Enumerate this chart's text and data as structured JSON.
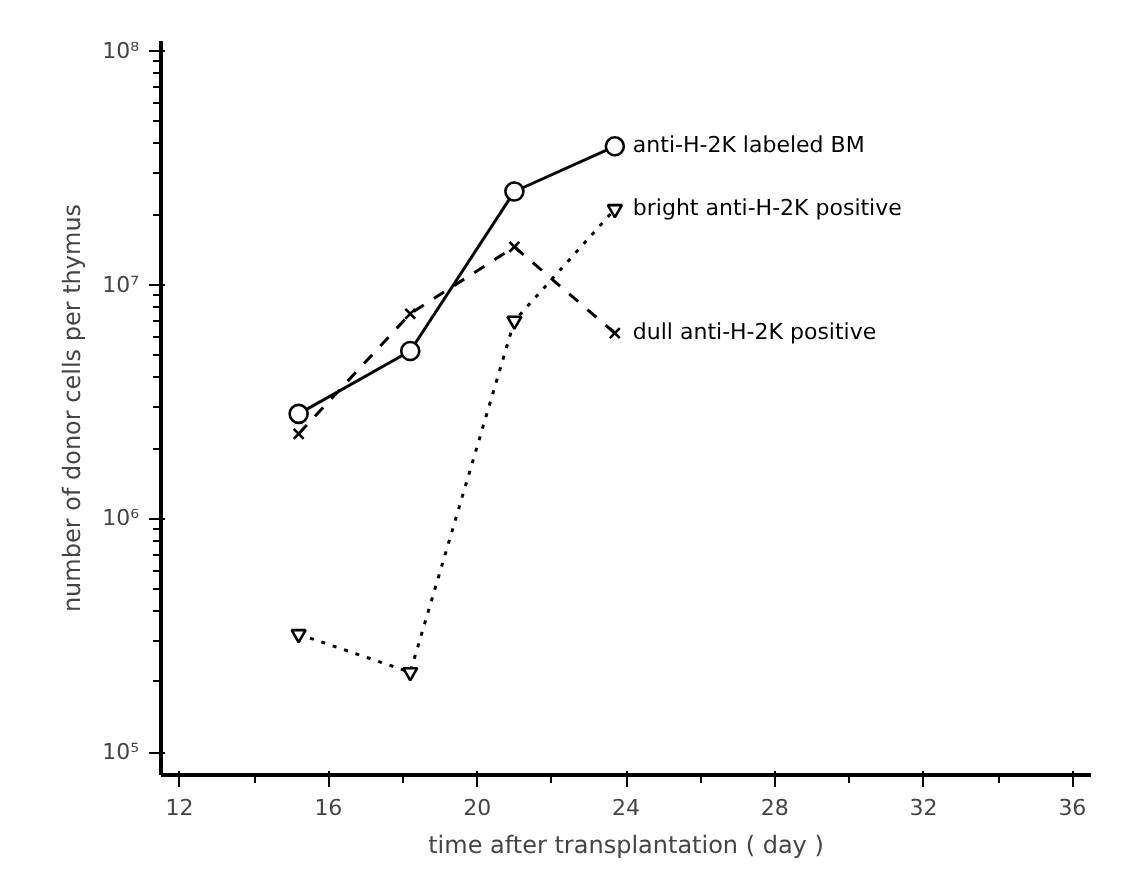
{
  "chart_data": {
    "type": "line",
    "xlabel": "time after transplantation ( day )",
    "ylabel": "number of donor cells per thymus",
    "log": "y",
    "xlim": [
      11.5,
      36.5
    ],
    "ylim": [
      80000,
      110000000
    ],
    "xticks": [
      12,
      16,
      20,
      24,
      28,
      32,
      36
    ],
    "yticks": [
      {
        "value": 100000,
        "label": "10⁵"
      },
      {
        "value": 1000000,
        "label": "10⁶"
      },
      {
        "value": 10000000,
        "label": "10⁷"
      },
      {
        "value": 100000000,
        "label": "10⁸"
      }
    ],
    "grid": false,
    "legend": false,
    "series": [
      {
        "name": "anti-H-2K labeled BM",
        "color": "#000000",
        "marker": "circle",
        "line_style": "solid",
        "x": [
          15.2,
          18.2,
          21,
          23.7
        ],
        "values": [
          2800000,
          5200000,
          25000000,
          39000000
        ]
      },
      {
        "name": "bright anti-H-2K positive",
        "color": "#000000",
        "marker": "triangle",
        "line_style": "dotted",
        "x": [
          15.2,
          18.2,
          21,
          23.7
        ],
        "values": [
          320000,
          220000,
          7000000,
          21000000
        ]
      },
      {
        "name": "dull anti-H-2K positive",
        "color": "#000000",
        "marker": "cross",
        "line_style": "dashed",
        "x": [
          15.2,
          18.2,
          21,
          23.7
        ],
        "values": [
          2300000,
          7500000,
          14500000,
          6200000
        ]
      }
    ]
  }
}
